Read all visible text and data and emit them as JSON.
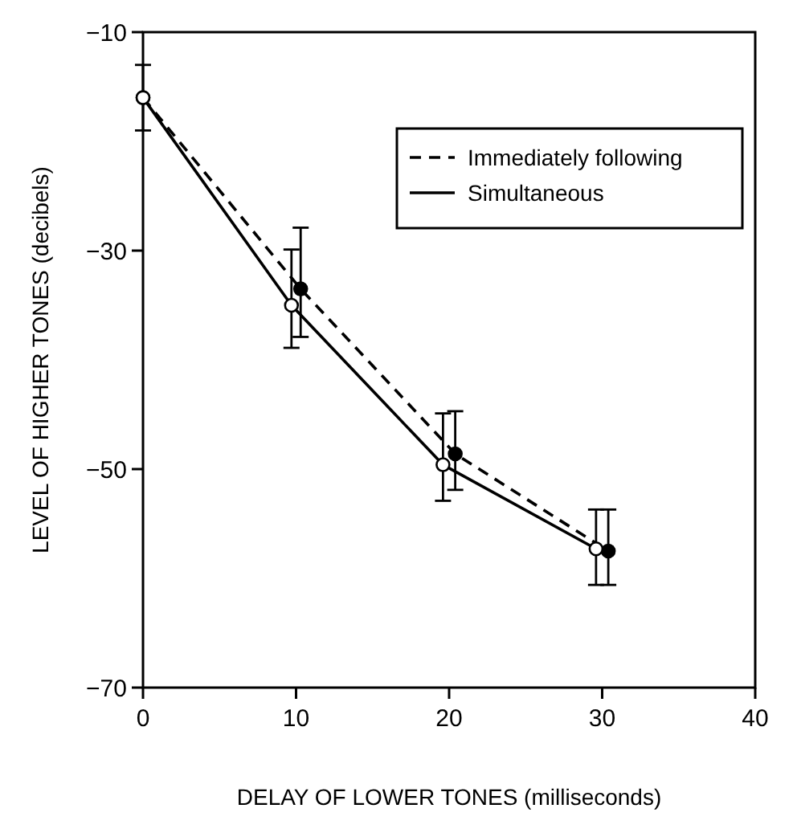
{
  "chart_data": {
    "type": "line",
    "xlabel": "DELAY OF LOWER TONES (milliseconds)",
    "ylabel": "LEVEL OF HIGHER TONES (decibels)",
    "series": [
      {
        "name": "Immediately following",
        "color": "#000000",
        "line_style": "dashed",
        "marker": "circle",
        "x": [
          0,
          10.3,
          20.4,
          30.4
        ],
        "values": [
          -16,
          -33.5,
          -48.6,
          -57.5
        ],
        "errors": [
          null,
          [
            -37.9,
            -27.9
          ],
          [
            -51.9,
            -44.7
          ],
          [
            -60.6,
            -53.7
          ]
        ]
      },
      {
        "name": "Simultaneous",
        "color": "#000000",
        "line_style": "solid",
        "marker": "circle",
        "x": [
          0,
          9.7,
          19.6,
          29.6
        ],
        "values": [
          -16,
          -35,
          -49.6,
          -57.3
        ],
        "errors": [
          [
            -19,
            -13
          ],
          [
            -38.9,
            -29.9
          ],
          [
            -52.9,
            -44.9
          ],
          [
            -60.6,
            -53.7
          ]
        ]
      }
    ],
    "xlim": [
      0,
      40
    ],
    "xticks": [
      0,
      10,
      20,
      30,
      40
    ],
    "ylim": [
      -70,
      -10
    ],
    "yticks": [
      -70,
      -50,
      -30,
      -10
    ],
    "legend": "top right",
    "grid": false
  }
}
